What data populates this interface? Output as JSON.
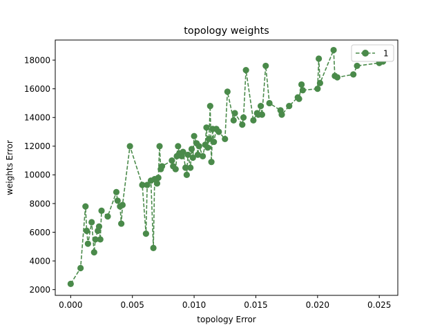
{
  "chart_data": {
    "type": "line",
    "title": "topology weights",
    "xlabel": "topology Error",
    "ylabel": "weights Error",
    "xlim": [
      -0.00125,
      0.0265
    ],
    "ylim": [
      1600,
      19400
    ],
    "xticks": [
      0.0,
      0.005,
      0.01,
      0.015,
      0.02,
      0.025
    ],
    "xtick_labels": [
      "0.000",
      "0.005",
      "0.010",
      "0.015",
      "0.020",
      "0.025"
    ],
    "yticks": [
      2000,
      4000,
      6000,
      8000,
      10000,
      12000,
      14000,
      16000,
      18000
    ],
    "ytick_labels": [
      "2000",
      "4000",
      "6000",
      "8000",
      "10000",
      "12000",
      "14000",
      "16000",
      "18000"
    ],
    "grid": false,
    "legend_position": "top-right",
    "color": "#4a8a4a",
    "line_style": "dashed",
    "marker": "circle",
    "series": [
      {
        "name": "1",
        "x": [
          0.0,
          0.0008,
          0.0012,
          0.0013,
          0.0014,
          0.0017,
          0.0019,
          0.002,
          0.0022,
          0.0023,
          0.0024,
          0.0025,
          0.003,
          0.0037,
          0.0038,
          0.004,
          0.0041,
          0.0042,
          0.0048,
          0.0058,
          0.0061,
          0.0062,
          0.0065,
          0.0067,
          0.0068,
          0.007,
          0.0071,
          0.0072,
          0.0073,
          0.0074,
          0.0082,
          0.0083,
          0.0085,
          0.0086,
          0.0087,
          0.0088,
          0.009,
          0.0091,
          0.0093,
          0.0094,
          0.0095,
          0.0097,
          0.0098,
          0.0099,
          0.01,
          0.0102,
          0.0103,
          0.0104,
          0.0107,
          0.0109,
          0.011,
          0.0111,
          0.0112,
          0.0113,
          0.0114,
          0.0115,
          0.0116,
          0.0118,
          0.012,
          0.0125,
          0.0127,
          0.0132,
          0.0133,
          0.0139,
          0.014,
          0.0142,
          0.0148,
          0.0151,
          0.0152,
          0.0154,
          0.0155,
          0.0158,
          0.0161,
          0.017,
          0.0171,
          0.0177,
          0.0184,
          0.0185,
          0.0187,
          0.0188,
          0.02,
          0.0201,
          0.0202,
          0.0213,
          0.0214,
          0.0216,
          0.0229,
          0.0232,
          0.025,
          0.0253
        ],
        "y": [
          2400,
          3500,
          7800,
          6100,
          5200,
          6700,
          4600,
          5500,
          6100,
          6400,
          5500,
          7500,
          7100,
          8800,
          8200,
          7800,
          6600,
          7900,
          12000,
          9300,
          5900,
          9300,
          9600,
          4900,
          9700,
          9400,
          9800,
          12000,
          10400,
          10600,
          11000,
          10600,
          10400,
          11300,
          12000,
          11500,
          11300,
          11600,
          10500,
          10000,
          11400,
          10500,
          11800,
          11200,
          12700,
          12200,
          11400,
          12000,
          11300,
          12100,
          13300,
          11900,
          12500,
          14800,
          10900,
          13200,
          12300,
          13200,
          13000,
          12500,
          15800,
          13800,
          14300,
          13500,
          14000,
          17300,
          13800,
          14300,
          14200,
          14800,
          14200,
          17600,
          15000,
          14500,
          14200,
          14800,
          15400,
          15300,
          16300,
          15900,
          16000,
          18100,
          16400,
          18700,
          16900,
          16800,
          17000,
          17600,
          17800,
          17900
        ]
      }
    ]
  }
}
